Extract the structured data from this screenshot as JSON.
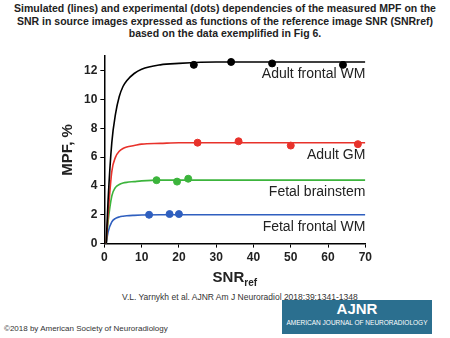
{
  "chart_data": {
    "type": "line",
    "title": "Simulated (lines) and experimental (dots) dependencies of the measured MPF on the SNR in source images expressed as functions of the reference image SNR (SNRref) based on the data exemplified in Fig 6.",
    "x_label": {
      "text": "SNR",
      "subscript": "ref"
    },
    "y_label": "MPF, %",
    "xlim": [
      0,
      70
    ],
    "xticks": [
      0,
      10,
      20,
      30,
      40,
      50,
      60,
      70
    ],
    "ylim": [
      0,
      13
    ],
    "yticks": [
      0,
      2,
      4,
      6,
      8,
      10,
      12
    ],
    "grid": false,
    "series": [
      {
        "name": "Adult frontal WM",
        "color": "#000000",
        "type": "line",
        "line_style": "solid",
        "x": [
          0.5,
          1,
          2,
          3,
          4,
          5,
          6,
          8,
          10,
          15,
          20,
          30,
          40,
          50,
          60,
          70
        ],
        "values": [
          0,
          3,
          7,
          9,
          10.2,
          10.9,
          11.3,
          11.8,
          12.1,
          12.4,
          12.5,
          12.6,
          12.6,
          12.6,
          12.6,
          12.6
        ]
      },
      {
        "name": "Adult frontal WM",
        "color": "#000000",
        "type": "scatter",
        "marker": "circle",
        "x": [
          24,
          34,
          45,
          64
        ],
        "values": [
          12.4,
          12.6,
          12.5,
          12.4
        ]
      },
      {
        "name": "Adult GM",
        "color": "#e8322b",
        "type": "line",
        "line_style": "solid",
        "x": [
          0.5,
          1,
          2,
          3,
          4,
          5,
          6,
          8,
          10,
          15,
          20,
          30,
          40,
          50,
          60,
          70
        ],
        "values": [
          0,
          2,
          5,
          6,
          6.4,
          6.6,
          6.7,
          6.8,
          6.9,
          6.95,
          7,
          7,
          7,
          7,
          7,
          7
        ]
      },
      {
        "name": "Adult GM",
        "color": "#e8322b",
        "type": "scatter",
        "marker": "circle",
        "x": [
          25,
          36,
          50,
          68
        ],
        "values": [
          7.0,
          7.1,
          6.8,
          6.9
        ]
      },
      {
        "name": "Fetal brainstem",
        "color": "#3cb43c",
        "type": "line",
        "line_style": "solid",
        "x": [
          0.5,
          1,
          2,
          3,
          4,
          5,
          6,
          8,
          10,
          15,
          20,
          30,
          40,
          50,
          60,
          70
        ],
        "values": [
          0,
          1.5,
          3.3,
          3.9,
          4.1,
          4.2,
          4.25,
          4.3,
          4.35,
          4.4,
          4.4,
          4.4,
          4.4,
          4.4,
          4.4,
          4.4
        ]
      },
      {
        "name": "Fetal brainstem",
        "color": "#3cb43c",
        "type": "scatter",
        "marker": "circle",
        "x": [
          14,
          19.5,
          22.5
        ],
        "values": [
          4.4,
          4.3,
          4.5
        ]
      },
      {
        "name": "Fetal frontal WM",
        "color": "#2f5fbf",
        "type": "line",
        "line_style": "solid",
        "x": [
          0.5,
          1,
          2,
          3,
          4,
          5,
          6,
          8,
          10,
          15,
          20,
          30,
          40,
          50,
          60,
          70
        ],
        "values": [
          0,
          0.8,
          1.5,
          1.75,
          1.85,
          1.9,
          1.93,
          1.96,
          1.98,
          2,
          2,
          2,
          2,
          2,
          2,
          2
        ]
      },
      {
        "name": "Fetal frontal WM",
        "color": "#2f5fbf",
        "type": "scatter",
        "marker": "circle",
        "x": [
          12,
          17.5,
          20
        ],
        "values": [
          2.0,
          2.05,
          2.05
        ]
      }
    ]
  },
  "footer": {
    "citation": "V.L. Yarnykh et al. AJNR Am J Neuroradiol 2018;39:1341-1348",
    "copyright": "©2018 by American Society of Neuroradiology",
    "logo": "AJNR",
    "logo_subtext": "AMERICAN JOURNAL OF NEURORADIOLOGY"
  }
}
